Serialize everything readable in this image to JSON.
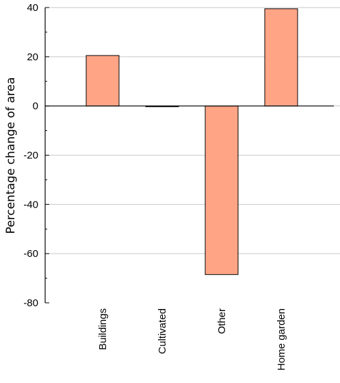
{
  "chart_data": {
    "type": "bar",
    "categories": [
      "Buildings",
      "Cultivated",
      "Other",
      "Home garden"
    ],
    "values": [
      20.5,
      -0.3,
      -68.5,
      39.5
    ],
    "title": "",
    "xlabel": "",
    "ylabel": "Percentage change of area",
    "ylim": [
      -80,
      40
    ],
    "yticks": [
      -80,
      -60,
      -40,
      -20,
      0,
      20,
      40
    ],
    "grid": true,
    "bar_color": "#ffa586",
    "bar_edge_color": "#000000",
    "grid_color": "#c8c8c8",
    "legend": "none"
  }
}
